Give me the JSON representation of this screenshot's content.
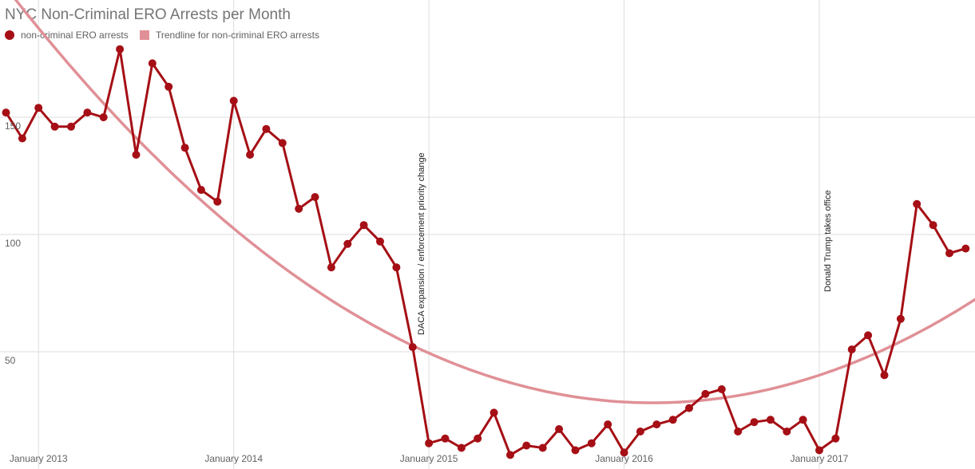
{
  "chart_data": {
    "type": "line",
    "title": "NYC Non-Criminal ERO Arrests per Month",
    "xlabel": "",
    "ylabel": "",
    "ylim": [
      0,
      200
    ],
    "xlim": [
      "2012-11",
      "2017-10"
    ],
    "grid": true,
    "legend_position": "top-left",
    "x": [
      "2012-11",
      "2012-12",
      "2013-01",
      "2013-02",
      "2013-03",
      "2013-04",
      "2013-05",
      "2013-06",
      "2013-07",
      "2013-08",
      "2013-09",
      "2013-10",
      "2013-11",
      "2013-12",
      "2014-01",
      "2014-02",
      "2014-03",
      "2014-04",
      "2014-05",
      "2014-06",
      "2014-07",
      "2014-08",
      "2014-09",
      "2014-10",
      "2014-11",
      "2014-12",
      "2015-01",
      "2015-02",
      "2015-03",
      "2015-04",
      "2015-05",
      "2015-06",
      "2015-07",
      "2015-08",
      "2015-09",
      "2015-10",
      "2015-11",
      "2015-12",
      "2016-01",
      "2016-02",
      "2016-03",
      "2016-04",
      "2016-05",
      "2016-06",
      "2016-07",
      "2016-08",
      "2016-09",
      "2016-10",
      "2016-11",
      "2016-12",
      "2017-01",
      "2017-02",
      "2017-03",
      "2017-04",
      "2017-05",
      "2017-06",
      "2017-07",
      "2017-08",
      "2017-09",
      "2017-10"
    ],
    "x_ticks": [
      {
        "value": "2013-01",
        "label": "January 2013"
      },
      {
        "value": "2014-01",
        "label": "January 2014"
      },
      {
        "value": "2015-01",
        "label": "January 2015"
      },
      {
        "value": "2016-01",
        "label": "January 2016"
      },
      {
        "value": "2017-01",
        "label": "January 2017"
      }
    ],
    "y_ticks": [
      {
        "value": 50,
        "label": "50"
      },
      {
        "value": 100,
        "label": "100"
      },
      {
        "value": 150,
        "label": "150"
      }
    ],
    "series": [
      {
        "name": "non-criminal ERO arrests",
        "color": "#a50f15",
        "values": [
          152,
          141,
          154,
          146,
          146,
          152,
          150,
          179,
          134,
          173,
          163,
          137,
          119,
          114,
          157,
          134,
          145,
          139,
          111,
          116,
          86,
          96,
          104,
          97,
          86,
          52,
          11,
          13,
          9,
          13,
          24,
          6,
          10,
          9,
          17,
          8,
          11,
          19,
          7,
          16,
          19,
          21,
          26,
          32,
          34,
          16,
          20,
          21,
          16,
          21,
          8,
          13,
          51,
          57,
          40,
          64,
          113,
          104,
          92,
          94
        ]
      }
    ],
    "trendline": {
      "name": "Trendline for non-criminal ERO arrests",
      "color": "#e09096",
      "type": "polynomial-2",
      "extends_to": [
        "2012-11",
        "2017-10"
      ]
    },
    "annotations": [
      {
        "x": "2014-12",
        "text": "DACA expansion / enforcement priority change"
      },
      {
        "x": "2017-01",
        "text": "Donald Trump takes office"
      }
    ]
  }
}
